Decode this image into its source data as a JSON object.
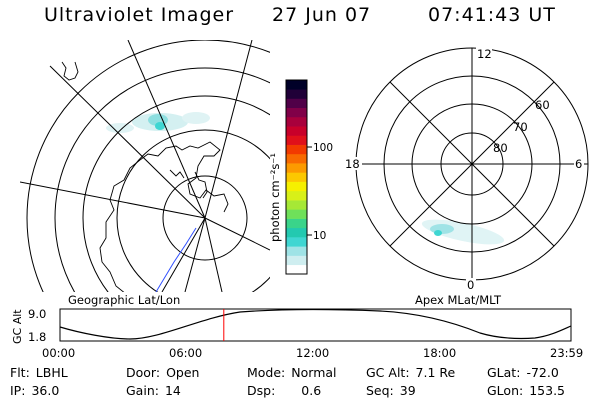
{
  "header": {
    "title": "Ultraviolet Imager",
    "date": "27 Jun 07",
    "time": "07:41:43 UT"
  },
  "colorbar": {
    "label": "photon cm⁻²s⁻¹",
    "ticks": [
      "100",
      "10"
    ],
    "colors": [
      "#ffffff",
      "#cfeef0",
      "#9fe3e6",
      "#3fd6d2",
      "#23c9b0",
      "#3ad48a",
      "#6fe05a",
      "#a6e836",
      "#d8f018",
      "#f6f000",
      "#fcc800",
      "#fc9a00",
      "#f86a00",
      "#f23a00",
      "#e0101a",
      "#c8002a",
      "#a8003c",
      "#800048",
      "#500048",
      "#200038",
      "#000028"
    ]
  },
  "geo_map": {
    "caption": "Geographic Lat/Lon"
  },
  "polar_plot": {
    "caption": "Apex MLat/MLT",
    "mlt_labels": [
      "12",
      "18",
      "6",
      "0"
    ],
    "mlat_labels": [
      "60",
      "70",
      "80"
    ]
  },
  "orbit_plot": {
    "ylabel": "GC Alt",
    "yticks": [
      "9.0",
      "1.8"
    ],
    "xticks": [
      "00:00",
      "06:00",
      "12:00",
      "18:00",
      "23:59"
    ],
    "current_time_fraction": 0.3206,
    "marker_color": "#ff0000"
  },
  "info": {
    "flt": {
      "label": "Flt:",
      "value": "LBHL"
    },
    "door": {
      "label": "Door:",
      "value": "Open"
    },
    "mode": {
      "label": "Mode:",
      "value": "Normal"
    },
    "gc_alt": {
      "label": "GC Alt:",
      "value": "7.1 Re"
    },
    "glat": {
      "label": "GLat:",
      "value": "-72.0"
    },
    "ip": {
      "label": "IP:",
      "value": "36.0"
    },
    "gain": {
      "label": "Gain:",
      "value": "14"
    },
    "dsp": {
      "label": "Dsp:",
      "value": "0.6"
    },
    "seq": {
      "label": "Seq:",
      "value": "39"
    },
    "glon": {
      "label": "GLon:",
      "value": "153.5"
    }
  }
}
